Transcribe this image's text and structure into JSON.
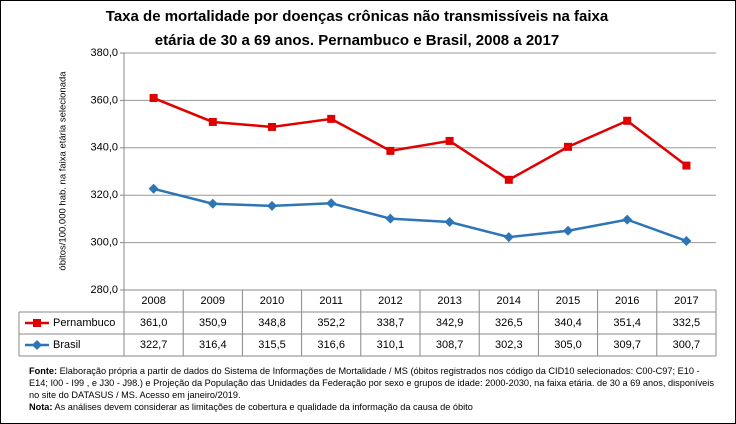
{
  "chart_data": {
    "type": "line",
    "title_lines": [
      "Taxa de mortalidade por doenças crônicas não transmissíveis na faixa",
      "etária de 30 a 69 anos. Pernambuco e Brasil, 2008 a 2017"
    ],
    "y_label": "óbitos/100.000 hab. na faixa etária selecionada",
    "categories": [
      "2008",
      "2009",
      "2010",
      "2011",
      "2012",
      "2013",
      "2014",
      "2015",
      "2016",
      "2017"
    ],
    "series": [
      {
        "name": "Pernambuco",
        "color": "#e00000",
        "marker": "square",
        "values": [
          361.0,
          350.9,
          348.8,
          352.2,
          338.7,
          342.9,
          326.5,
          340.4,
          351.4,
          332.5
        ],
        "value_labels": [
          "361,0",
          "350,9",
          "348,8",
          "352,2",
          "338,7",
          "342,9",
          "326,5",
          "340,4",
          "351,4",
          "332,5"
        ]
      },
      {
        "name": "Brasil",
        "color": "#2e75b6",
        "marker": "diamond",
        "values": [
          322.7,
          316.4,
          315.5,
          316.6,
          310.1,
          308.7,
          302.3,
          305.0,
          309.7,
          300.7
        ],
        "value_labels": [
          "322,7",
          "316,4",
          "315,5",
          "316,6",
          "310,1",
          "308,7",
          "302,3",
          "305,0",
          "309,7",
          "300,7"
        ]
      }
    ],
    "ylim": [
      280,
      380
    ],
    "yticks": [
      {
        "value": 280,
        "label": "280,0"
      },
      {
        "value": 300,
        "label": "300,0"
      },
      {
        "value": 320,
        "label": "320,0"
      },
      {
        "value": 340,
        "label": "340,0"
      },
      {
        "value": 360,
        "label": "360,0"
      },
      {
        "value": 380,
        "label": "380,0"
      }
    ],
    "grid": true,
    "source_label": "Fonte:",
    "source": "Elaboração própria a partir de dados do Sistema de Informações de Mortalidade / MS (óbitos registrados nos código da CID10 selecionados: C00-C97; E10 - E14; I00 - I99 , e J30 - J98.) e Projeção da População das Unidades da Federação por sexo e grupos de idade: 2000-2030, na faixa etária. de 30 a 69 anos, disponíveis no site do DATASUS / MS.  Acesso em janeiro/2019.",
    "note_label": "Nota:",
    "note": "As análises devem considerar as limitações de cobertura e qualidade da informação da causa de óbito"
  }
}
